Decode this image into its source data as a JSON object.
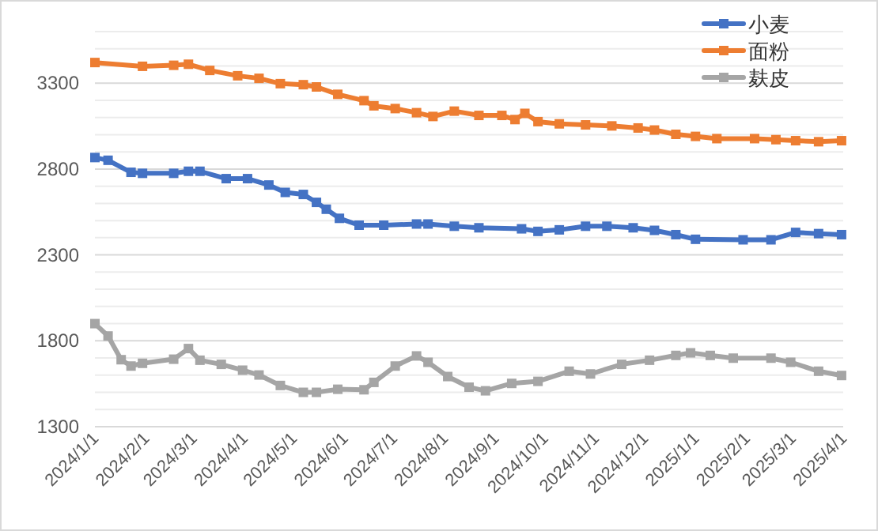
{
  "chart_data": {
    "type": "line",
    "marker": "square",
    "line_style": "solid",
    "legend": "top right",
    "grid": "y",
    "xlim": [
      "2024-01-01",
      "2025-04-01"
    ],
    "xticks": [
      {
        "value": "2024-01-01",
        "label": "2024/1/1"
      },
      {
        "value": "2024-02-01",
        "label": "2024/2/1"
      },
      {
        "value": "2024-03-01",
        "label": "2024/3/1"
      },
      {
        "value": "2024-04-01",
        "label": "2024/4/1"
      },
      {
        "value": "2024-05-01",
        "label": "2024/5/1"
      },
      {
        "value": "2024-06-01",
        "label": "2024/6/1"
      },
      {
        "value": "2024-07-01",
        "label": "2024/7/1"
      },
      {
        "value": "2024-08-01",
        "label": "2024/8/1"
      },
      {
        "value": "2024-09-01",
        "label": "2024/9/1"
      },
      {
        "value": "2024-10-01",
        "label": "2024/10/1"
      },
      {
        "value": "2024-11-01",
        "label": "2024/11/1"
      },
      {
        "value": "2024-12-01",
        "label": "2024/12/1"
      },
      {
        "value": "2025-01-01",
        "label": "2025/1/1"
      },
      {
        "value": "2025-02-01",
        "label": "2025/2/1"
      },
      {
        "value": "2025-03-01",
        "label": "2025/3/1"
      },
      {
        "value": "2025-04-01",
        "label": "2025/4/1"
      }
    ],
    "ylim": [
      1300,
      3600
    ],
    "yticks": [
      1300,
      {
        "value": 1400,
        "label": null
      },
      {
        "value": 1500,
        "label": null
      },
      {
        "value": 1600,
        "label": null
      },
      {
        "value": 1700,
        "label": null
      },
      1800,
      {
        "value": 1900,
        "label": null
      },
      {
        "value": 2000,
        "label": null
      },
      {
        "value": 2100,
        "label": null
      },
      {
        "value": 2200,
        "label": null
      },
      2300,
      {
        "value": 2400,
        "label": null
      },
      {
        "value": 2500,
        "label": null
      },
      {
        "value": 2600,
        "label": null
      },
      {
        "value": 2700,
        "label": null
      },
      2800,
      {
        "value": 2900,
        "label": null
      },
      {
        "value": 3000,
        "label": null
      },
      {
        "value": 3100,
        "label": null
      },
      {
        "value": 3200,
        "label": null
      },
      3300,
      {
        "value": 3400,
        "label": null
      },
      {
        "value": 3500,
        "label": null
      },
      {
        "value": 3600,
        "label": null
      }
    ],
    "series": [
      {
        "name": "小麦",
        "color": "#4472c4",
        "x": [
          "2024-01-01",
          "2024-01-09",
          "2024-01-23",
          "2024-01-30",
          "2024-02-18",
          "2024-02-27",
          "2024-03-05",
          "2024-03-21",
          "2024-04-03",
          "2024-04-16",
          "2024-04-26",
          "2024-05-07",
          "2024-05-15",
          "2024-05-21",
          "2024-05-29",
          "2024-06-10",
          "2024-06-25",
          "2024-07-15",
          "2024-07-22",
          "2024-08-07",
          "2024-08-22",
          "2024-09-17",
          "2024-09-27",
          "2024-10-10",
          "2024-10-26",
          "2024-11-08",
          "2024-11-24",
          "2024-12-07",
          "2024-12-20",
          "2025-01-01",
          "2025-01-30",
          "2025-02-16",
          "2025-03-03",
          "2025-03-17",
          "2025-03-31"
        ],
        "values": [
          2867,
          2851,
          2781,
          2775,
          2775,
          2787,
          2787,
          2744,
          2744,
          2707,
          2664,
          2652,
          2606,
          2566,
          2513,
          2473,
          2473,
          2480,
          2480,
          2467,
          2458,
          2452,
          2437,
          2446,
          2467,
          2467,
          2458,
          2443,
          2418,
          2391,
          2388,
          2388,
          2431,
          2424,
          2418
        ]
      },
      {
        "name": "面粉",
        "color": "#ed7d31",
        "x": [
          "2024-01-01",
          "2024-01-30",
          "2024-02-18",
          "2024-02-27",
          "2024-03-11",
          "2024-03-28",
          "2024-04-10",
          "2024-04-23",
          "2024-05-07",
          "2024-05-15",
          "2024-05-28",
          "2024-06-13",
          "2024-06-19",
          "2024-07-02",
          "2024-07-15",
          "2024-07-25",
          "2024-08-07",
          "2024-08-22",
          "2024-09-05",
          "2024-09-13",
          "2024-09-19",
          "2024-09-27",
          "2024-10-10",
          "2024-10-26",
          "2024-11-11",
          "2024-11-27",
          "2024-12-07",
          "2024-12-20",
          "2025-01-01",
          "2025-01-14",
          "2025-02-06",
          "2025-02-19",
          "2025-03-03",
          "2025-03-17",
          "2025-03-31"
        ],
        "values": [
          3420,
          3398,
          3404,
          3410,
          3374,
          3343,
          3328,
          3297,
          3291,
          3278,
          3235,
          3198,
          3168,
          3152,
          3128,
          3106,
          3137,
          3112,
          3112,
          3088,
          3124,
          3076,
          3063,
          3057,
          3051,
          3039,
          3027,
          3002,
          2990,
          2977,
          2977,
          2971,
          2965,
          2959,
          2965
        ]
      },
      {
        "name": "麸皮",
        "color": "#a5a5a5",
        "x": [
          "2024-01-01",
          "2024-01-09",
          "2024-01-17",
          "2024-01-23",
          "2024-01-30",
          "2024-02-18",
          "2024-02-27",
          "2024-03-05",
          "2024-03-18",
          "2024-03-31",
          "2024-04-10",
          "2024-04-23",
          "2024-05-07",
          "2024-05-15",
          "2024-05-28",
          "2024-06-13",
          "2024-06-19",
          "2024-07-02",
          "2024-07-15",
          "2024-07-22",
          "2024-08-03",
          "2024-08-16",
          "2024-08-26",
          "2024-09-11",
          "2024-09-27",
          "2024-10-16",
          "2024-10-29",
          "2024-11-17",
          "2024-12-04",
          "2024-12-20",
          "2024-12-29",
          "2025-01-10",
          "2025-01-24",
          "2025-02-16",
          "2025-02-28",
          "2025-03-17",
          "2025-03-31"
        ],
        "values": [
          1900,
          1828,
          1690,
          1653,
          1669,
          1693,
          1755,
          1687,
          1663,
          1629,
          1601,
          1540,
          1500,
          1500,
          1518,
          1515,
          1558,
          1653,
          1712,
          1675,
          1592,
          1530,
          1509,
          1552,
          1564,
          1623,
          1607,
          1663,
          1687,
          1715,
          1730,
          1715,
          1699,
          1699,
          1675,
          1623,
          1598
        ]
      }
    ]
  }
}
